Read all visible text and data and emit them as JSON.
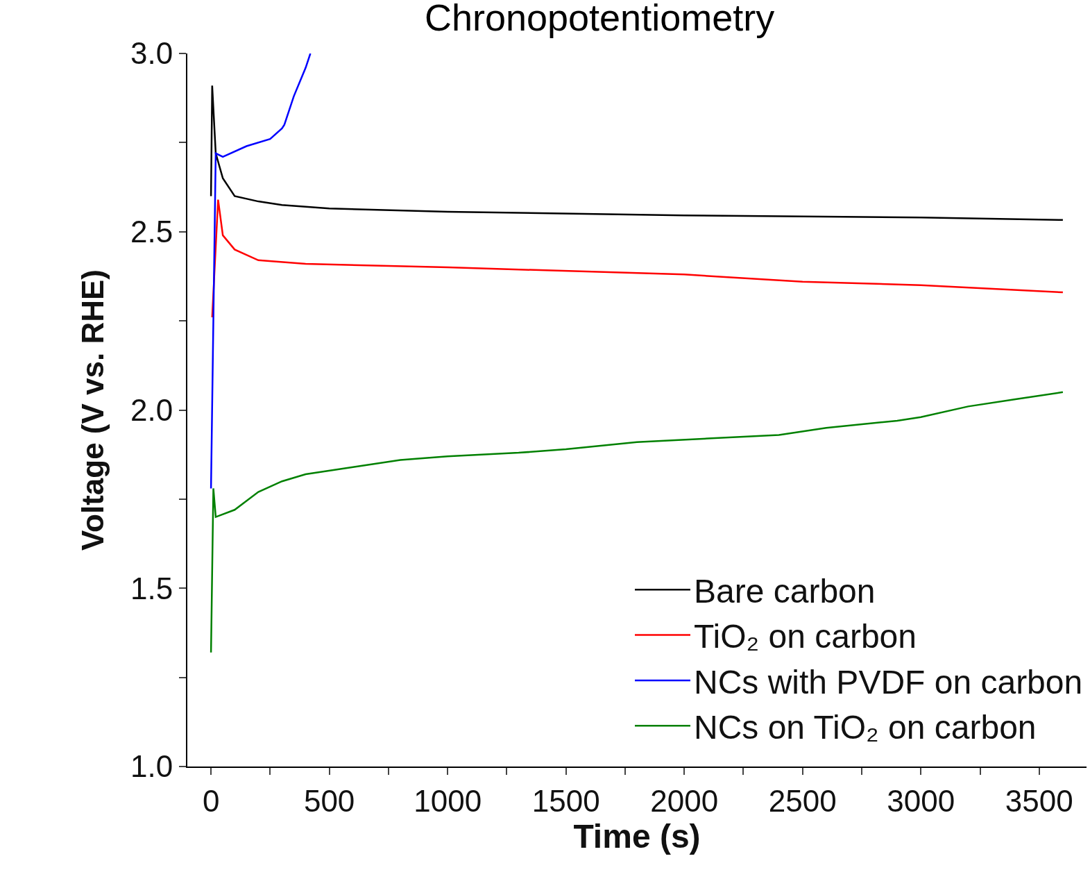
{
  "chart_data": {
    "type": "line",
    "title": "Chronopotentiometry",
    "xlabel": "Time (s)",
    "ylabel": "Voltage (V vs. RHE)",
    "xlim": [
      -100,
      3700
    ],
    "ylim": [
      1.0,
      3.0
    ],
    "xticks": [
      0,
      {
        "value": 250,
        "label": null
      },
      500,
      {
        "value": 750,
        "label": null
      },
      1000,
      {
        "value": 1250,
        "label": null
      },
      1500,
      {
        "value": 1750,
        "label": null
      },
      2000,
      {
        "value": 2250,
        "label": null
      },
      2500,
      {
        "value": 2750,
        "label": null
      },
      3000,
      {
        "value": 3250,
        "label": null
      },
      3500
    ],
    "yticks": [
      {
        "value": 1.0,
        "label": "1.0"
      },
      {
        "value": 1.25,
        "label": null
      },
      1.5,
      {
        "value": 1.75,
        "label": null
      },
      {
        "value": 2.0,
        "label": "2.0"
      },
      {
        "value": 2.25,
        "label": null
      },
      2.5,
      {
        "value": 2.75,
        "label": null
      },
      {
        "value": 3.0,
        "label": "3.0"
      }
    ],
    "legend": "bottom right",
    "marker": "none",
    "line_style": "solid",
    "series": [
      {
        "name": "Bare carbon",
        "color": "#000000",
        "x": [
          0,
          5,
          20,
          50,
          100,
          200,
          300,
          500,
          1000,
          2000,
          3000,
          3600
        ],
        "values": [
          2.6,
          2.91,
          2.72,
          2.65,
          2.6,
          2.585,
          2.575,
          2.565,
          2.556,
          2.546,
          2.54,
          2.533
        ]
      },
      {
        "name": "TiO₂ on carbon",
        "color": "#ff0000",
        "x": [
          5,
          30,
          50,
          100,
          200,
          400,
          1000,
          2000,
          2500,
          3000,
          3600
        ],
        "values": [
          2.26,
          2.59,
          2.49,
          2.45,
          2.42,
          2.41,
          2.4,
          2.38,
          2.36,
          2.35,
          2.33
        ]
      },
      {
        "name": "NCs with PVDF on carbon",
        "color": "#0000ff",
        "x": [
          0,
          20,
          50,
          150,
          250,
          300,
          310,
          350,
          400,
          420
        ],
        "values": [
          1.78,
          2.72,
          2.71,
          2.74,
          2.76,
          2.79,
          2.8,
          2.88,
          2.96,
          3.0
        ]
      },
      {
        "name": "NCs on TiO₂ on carbon",
        "color": "#008000",
        "x": [
          0,
          10,
          20,
          100,
          200,
          300,
          400,
          600,
          800,
          1000,
          1300,
          1500,
          1800,
          2100,
          2400,
          2600,
          2900,
          3000,
          3200,
          3400,
          3600
        ],
        "values": [
          1.32,
          1.78,
          1.7,
          1.72,
          1.77,
          1.8,
          1.82,
          1.84,
          1.86,
          1.87,
          1.88,
          1.89,
          1.91,
          1.92,
          1.93,
          1.95,
          1.97,
          1.98,
          2.01,
          2.03,
          2.05
        ]
      }
    ]
  }
}
